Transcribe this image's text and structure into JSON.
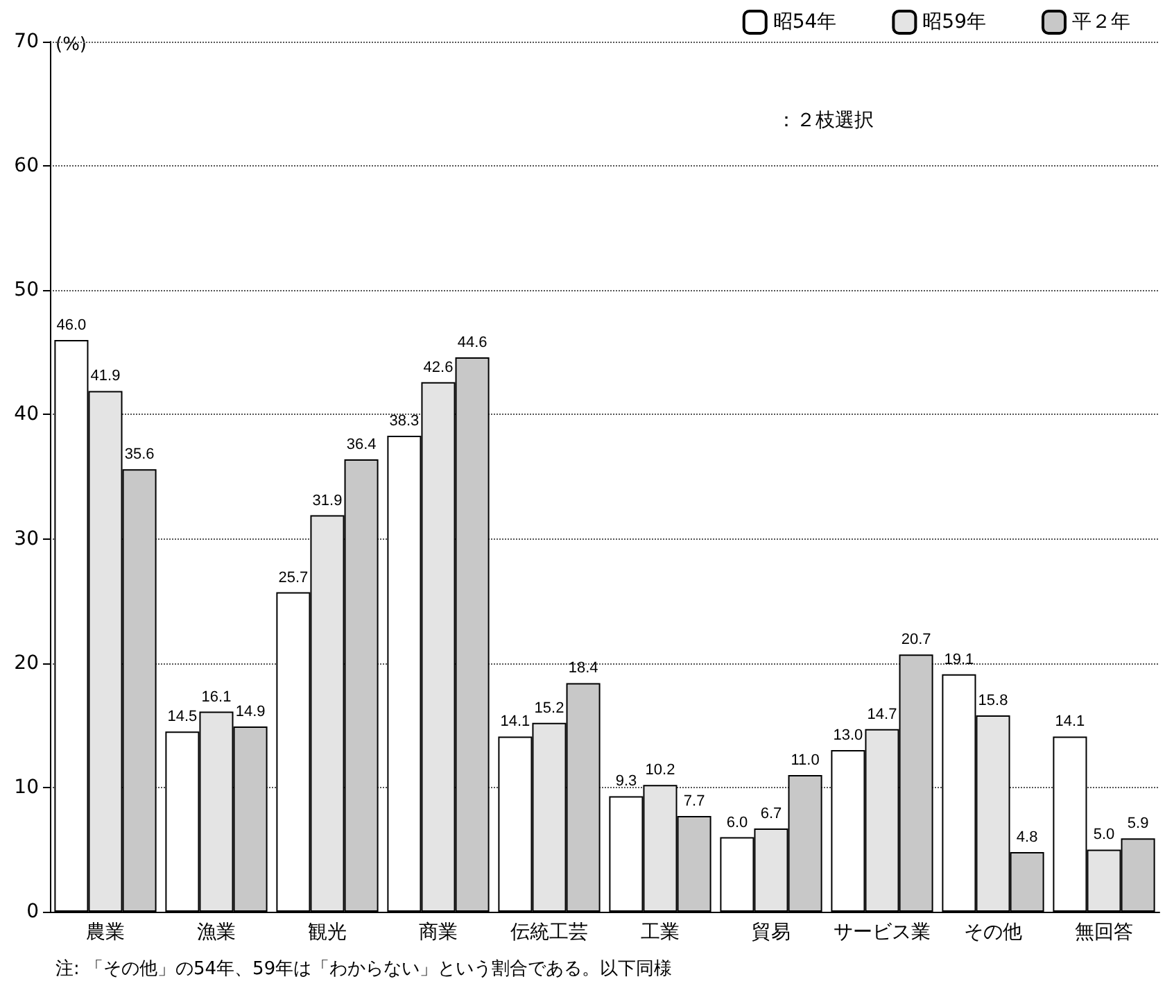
{
  "chart_data": {
    "type": "bar",
    "ylabel": "(%)",
    "categories": [
      "農業",
      "漁業",
      "観光",
      "商業",
      "伝統工芸",
      "工業",
      "貿易",
      "サービス業",
      "その他",
      "無回答"
    ],
    "series": [
      {
        "name": "昭54年",
        "color": "#ffffff",
        "values": [
          46.0,
          14.5,
          25.7,
          38.3,
          14.1,
          9.3,
          6.0,
          13.0,
          19.1,
          14.1
        ],
        "value_labels": [
          "46.0",
          "14.5",
          "25.7",
          "38.3",
          "14.1",
          "9.3",
          "6.0",
          "13.0",
          "19.1",
          "14.1"
        ]
      },
      {
        "name": "昭59年",
        "color": "#e4e4e4",
        "values": [
          41.9,
          16.1,
          31.9,
          42.6,
          15.2,
          10.2,
          6.7,
          14.7,
          15.8,
          5.0
        ],
        "value_labels": [
          "41.9",
          "16.1",
          "31.9",
          "42.6",
          "15.2",
          "10.2",
          "6.7",
          "14.7",
          "15.8",
          "5.0"
        ]
      },
      {
        "name": "平２年",
        "color": "#c8c8c8",
        "values": [
          35.6,
          14.9,
          36.4,
          44.6,
          18.4,
          7.7,
          11.0,
          20.7,
          4.8,
          5.9
        ],
        "value_labels": [
          "35.6",
          "14.9",
          "36.4",
          "44.6",
          "18.4",
          "7.7",
          "11.0",
          "20.7",
          "4.8",
          "5.9"
        ]
      }
    ],
    "ylim": [
      0,
      70
    ],
    "yticks": [
      0,
      10,
      20,
      30,
      40,
      50,
      60,
      70
    ],
    "grid": "y",
    "legend": "top right",
    "annotations": [
      "：２枝選択",
      "注: 「その他」の54年、59年は「わからない」という割合である。以下同様"
    ]
  }
}
